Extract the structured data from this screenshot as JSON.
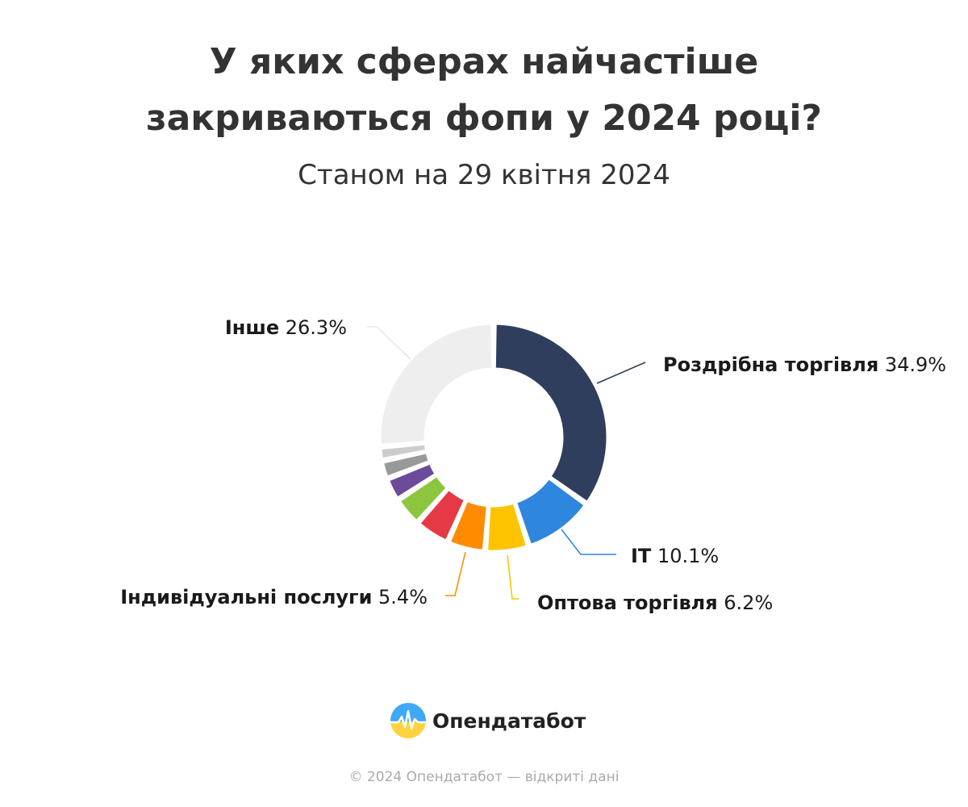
{
  "title_lines": [
    "У яких сферах найчастіше",
    "закриваються фопи у 2024 році?"
  ],
  "subtitle": "Станом на 29 квітня 2024",
  "chart_data": {
    "type": "pie",
    "variant": "donut",
    "slices": [
      {
        "name": "Роздрібна торгівля",
        "value": 34.9,
        "value_label": "34.9%",
        "color": "#2e3e5c",
        "labeled": true
      },
      {
        "name": "IT",
        "value": 10.1,
        "value_label": "10.1%",
        "color": "#2e86de",
        "labeled": true
      },
      {
        "name": "Оптова торгівля",
        "value": 6.2,
        "value_label": "6.2%",
        "color": "#ffc300",
        "labeled": true
      },
      {
        "name": "Індивідуальні послуги",
        "value": 5.4,
        "value_label": "5.4%",
        "color": "#ff8c00",
        "labeled": true
      },
      {
        "name": "",
        "value": 5.0,
        "value_label": "",
        "color": "#e63946",
        "labeled": false
      },
      {
        "name": "",
        "value": 4.2,
        "value_label": "",
        "color": "#8cc63f",
        "labeled": false
      },
      {
        "name": "",
        "value": 3.3,
        "value_label": "",
        "color": "#6b4c9a",
        "labeled": false
      },
      {
        "name": "",
        "value": 2.6,
        "value_label": "",
        "color": "#999999",
        "labeled": false
      },
      {
        "name": "",
        "value": 2.0,
        "value_label": "",
        "color": "#cccccc",
        "labeled": false
      },
      {
        "name": "Інше",
        "value": 26.3,
        "value_label": "26.3%",
        "color": "#eeeeee",
        "labeled": true
      }
    ]
  },
  "logo": {
    "text": "Опендатабот"
  },
  "footer": "© 2024 Опендатабот — відкриті дані"
}
